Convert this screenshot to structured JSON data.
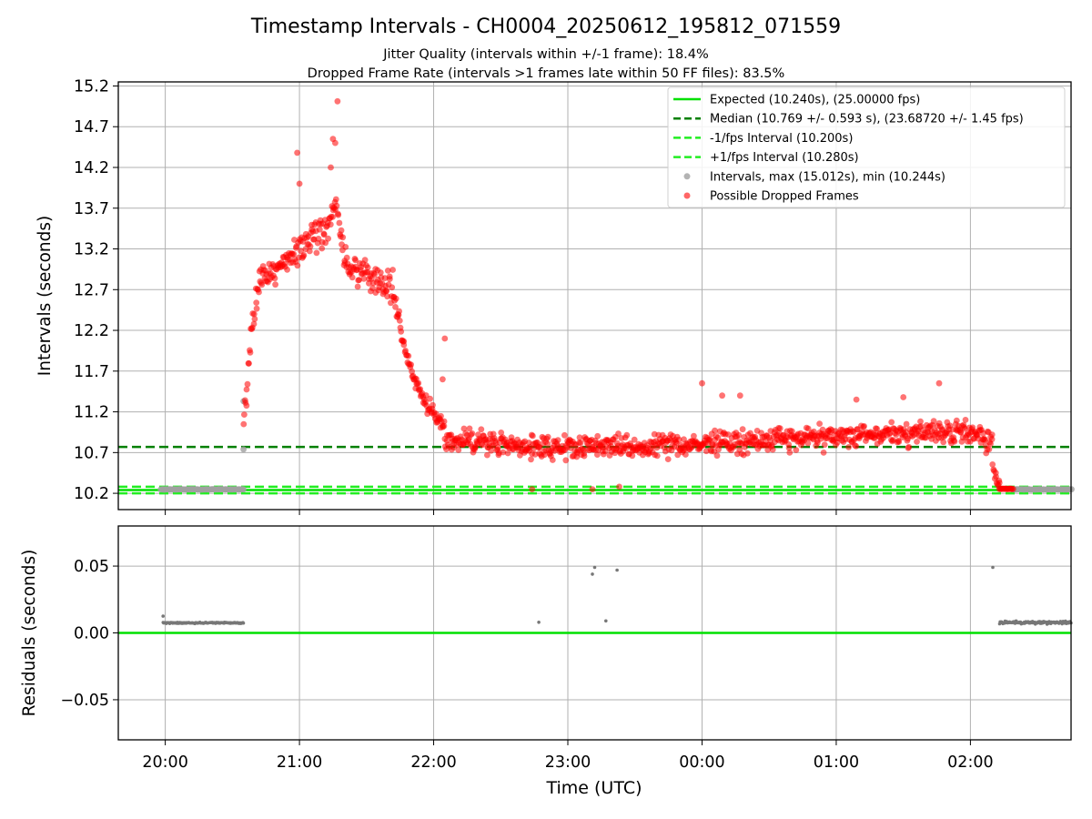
{
  "title": "Timestamp Intervals - CH0004_20250612_195812_071559",
  "subtitle_1": "Jitter Quality (intervals within +/-1 frame): 18.4%",
  "subtitle_2": "Dropped Frame Rate (intervals >1 frames late within 50 FF files): 83.5%",
  "colors": {
    "expected": "#00e000",
    "median": "#008000",
    "interval_bounds": "#22ee22",
    "normal_points": "#a0a0a0",
    "dropped_points": "#ff0000",
    "residual_points": "#777777",
    "grid": "#b0b0b0"
  },
  "chart_data": [
    {
      "type": "scatter",
      "panel": "top",
      "ylabel": "Intervals (seconds)",
      "ylim": [
        10.0,
        15.25
      ],
      "yticks": [
        10.2,
        10.7,
        11.2,
        11.7,
        12.2,
        12.7,
        13.2,
        13.7,
        14.2,
        14.7,
        15.2
      ],
      "ytick_labels": [
        "10.2",
        "10.7",
        "11.2",
        "11.7",
        "12.2",
        "12.7",
        "13.2",
        "13.7",
        "14.2",
        "14.7",
        "15.2"
      ],
      "grid": true,
      "legend_placement": "top-right",
      "reference_lines": [
        {
          "name": "Expected (10.240s), (25.00000 fps)",
          "y": 10.24,
          "style": "solid",
          "color": "#00e000"
        },
        {
          "name": "Median (10.769 +/- 0.593 s), (23.68720 +/- 1.45 fps)",
          "y": 10.769,
          "style": "dashed",
          "color": "#008000"
        },
        {
          "name": "-1/fps Interval (10.200s)",
          "y": 10.2,
          "style": "dashed",
          "color": "#22ee22"
        },
        {
          "name": "+1/fps Interval (10.280s)",
          "y": 10.28,
          "style": "dashed",
          "color": "#22ee22"
        }
      ],
      "series": [
        {
          "name": "Intervals, max (15.012s), min (10.244s)",
          "marker": "circle",
          "color": "#a0a0a0"
        },
        {
          "name": "Possible Dropped Frames",
          "marker": "circle",
          "color": "#ff0000"
        }
      ],
      "segments": [
        {
          "series": 0,
          "x_start": "19:58",
          "x_end": "20:35",
          "y_center": 10.248,
          "spread": 0.004
        },
        {
          "series": 0,
          "x": "20:35",
          "y": 11.33
        },
        {
          "series": 0,
          "x": "20:35",
          "y": 10.74
        },
        {
          "series": 1,
          "x_start": "20:35",
          "x_end": "20:42",
          "trend": [
            [
              20.58,
              11.0
            ],
            [
              20.65,
              12.3
            ],
            [
              20.7,
              12.8
            ]
          ],
          "spread": 0.3
        },
        {
          "series": 1,
          "x_start": "20:42",
          "x_end": "21:45",
          "trend": [
            [
              20.7,
              12.8
            ],
            [
              20.95,
              13.1
            ],
            [
              21.2,
              13.45
            ],
            [
              21.27,
              13.75
            ],
            [
              21.35,
              13.0
            ],
            [
              21.5,
              12.9
            ],
            [
              21.7,
              12.7
            ],
            [
              21.75,
              12.3
            ]
          ],
          "spread": 0.28
        },
        {
          "series": 1,
          "x_start": "21:45",
          "x_end": "22:05",
          "trend": [
            [
              21.75,
              12.2
            ],
            [
              21.85,
              11.6
            ],
            [
              21.95,
              11.3
            ],
            [
              22.1,
              10.95
            ]
          ],
          "spread": 0.14
        },
        {
          "series": 1,
          "x_start": "22:05",
          "x_end": "02:10",
          "trend": [
            [
              22.1,
              10.85
            ],
            [
              23.0,
              10.75
            ],
            [
              24.0,
              10.8
            ],
            [
              25.0,
              10.9
            ],
            [
              26.0,
              10.95
            ],
            [
              26.15,
              10.85
            ]
          ],
          "spread": 0.2
        },
        {
          "series": 1,
          "x_start": "02:10",
          "x_end": "02:13",
          "trend": [
            [
              26.13,
              10.8
            ],
            [
              26.2,
              10.3
            ]
          ],
          "spread": 0.08
        },
        {
          "series": 1,
          "x_start": "02:13",
          "x_end": "02:19",
          "y_center": 10.255,
          "spread": 0.005
        },
        {
          "series": 0,
          "x_start": "02:19",
          "x_end": "02:45",
          "y_center": 10.248,
          "spread": 0.004
        }
      ],
      "highlights": [
        {
          "series": 1,
          "x": "21:17",
          "y": 15.012
        },
        {
          "series": 1,
          "x": "20:59",
          "y": 14.38
        },
        {
          "series": 1,
          "x": "21:00",
          "y": 14.0
        },
        {
          "series": 1,
          "x": "21:15",
          "y": 14.55
        },
        {
          "series": 1,
          "x": "21:16",
          "y": 14.5
        },
        {
          "series": 1,
          "x": "21:14",
          "y": 14.2
        },
        {
          "series": 1,
          "x": "22:05",
          "y": 12.1
        },
        {
          "series": 1,
          "x": "00:00",
          "y": 11.55
        },
        {
          "series": 1,
          "x": "01:46",
          "y": 11.55
        },
        {
          "series": 1,
          "x": "00:09",
          "y": 11.4
        },
        {
          "series": 1,
          "x": "00:17",
          "y": 11.4
        },
        {
          "series": 1,
          "x": "01:09",
          "y": 11.35
        },
        {
          "series": 1,
          "x": "01:30",
          "y": 11.38
        },
        {
          "series": 1,
          "x": "22:44",
          "y": 10.25
        },
        {
          "series": 1,
          "x": "23:11",
          "y": 10.25
        },
        {
          "series": 1,
          "x": "23:23",
          "y": 10.28
        },
        {
          "series": 1,
          "x": "22:04",
          "y": 11.6
        }
      ]
    },
    {
      "type": "scatter",
      "panel": "bottom",
      "xlabel": "Time (UTC)",
      "ylabel": "Residuals (seconds)",
      "ylim": [
        -0.08,
        0.08
      ],
      "yticks": [
        -0.05,
        0.0,
        0.05
      ],
      "ytick_labels": [
        "−0.05",
        "0.00",
        "0.05"
      ],
      "grid": true,
      "x_range": [
        "19:39",
        "02:45"
      ],
      "xtick_labels": [
        "20:00",
        "21:00",
        "22:00",
        "23:00",
        "00:00",
        "01:00",
        "02:00"
      ],
      "reference_lines": [
        {
          "y": 0.0,
          "style": "solid",
          "color": "#00e000"
        }
      ],
      "segments": [
        {
          "x_start": "19:59",
          "x_end": "20:35",
          "y_center": 0.0075,
          "spread": 0.0008
        },
        {
          "x_start": "02:13",
          "x_end": "02:45",
          "y_center": 0.0078,
          "spread": 0.0015
        }
      ],
      "points": [
        {
          "x": "19:59",
          "y": 0.0125
        },
        {
          "x": "22:47",
          "y": 0.008
        },
        {
          "x": "23:11",
          "y": 0.044
        },
        {
          "x": "23:12",
          "y": 0.049
        },
        {
          "x": "23:17",
          "y": 0.009
        },
        {
          "x": "23:22",
          "y": 0.047
        },
        {
          "x": "02:10",
          "y": 0.049
        }
      ]
    }
  ]
}
